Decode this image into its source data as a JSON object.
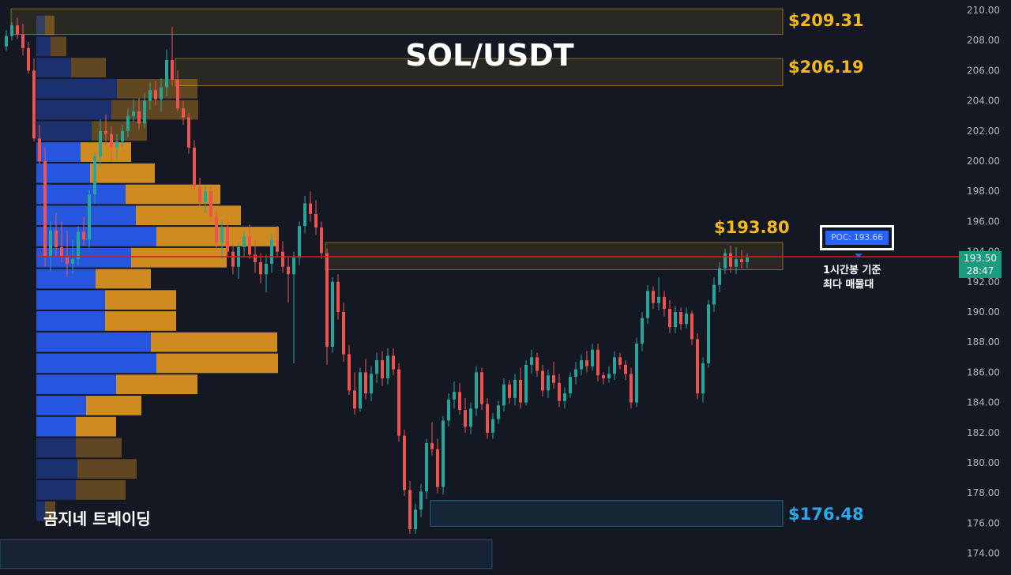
{
  "title": "SOL/USDT",
  "watermark": "곰지네 트레이딩",
  "colors": {
    "background": "#141823",
    "bull": "#26a69a",
    "bear": "#ef5350",
    "poc_line": "#d81b1b",
    "vp_buy": "#2962ff",
    "vp_sell": "#f0a020",
    "zone_yellow": "#f5b71b",
    "zone_blue": "#29a9e8"
  },
  "zone_labels": {
    "z1": "$209.31",
    "z2": "$206.19",
    "z3": "$193.80",
    "z4": "$176.48"
  },
  "poc": {
    "label": "POC: 193.66",
    "note_line1": "1시간봉 기준",
    "note_line2": "최다 매물대"
  },
  "price_tag": {
    "price": "193.50",
    "countdown": "28:47"
  },
  "chart_data": {
    "type": "candlestick",
    "title": "SOL/USDT",
    "ylim": [
      173.5,
      210.5
    ],
    "y_ticks": [
      "210.00",
      "208.00",
      "206.00",
      "204.00",
      "202.00",
      "200.00",
      "198.00",
      "196.00",
      "194.00",
      "192.00",
      "190.00",
      "188.00",
      "186.00",
      "184.00",
      "182.00",
      "180.00",
      "178.00",
      "176.00",
      "174.00"
    ],
    "current_price": 193.5,
    "poc_price": 193.66,
    "zones": [
      {
        "label": "$209.31",
        "low": 208.4,
        "high": 210.1,
        "color": "yellow"
      },
      {
        "label": "$206.19",
        "low": 205.0,
        "high": 206.8,
        "color": "yellow"
      },
      {
        "label": "$193.80",
        "low": 192.8,
        "high": 194.6,
        "color": "yellow"
      },
      {
        "label": "$176.48",
        "low": 175.8,
        "high": 177.5,
        "color": "blue"
      }
    ],
    "volume_profile": [
      {
        "price": 209,
        "buy": 11,
        "sell": 12
      },
      {
        "price": 207.6,
        "buy": 18,
        "sell": 20
      },
      {
        "price": 206.2,
        "buy": 44,
        "sell": 44
      },
      {
        "price": 204.8,
        "buy": 102,
        "sell": 102
      },
      {
        "price": 203.4,
        "buy": 95,
        "sell": 110
      },
      {
        "price": 202,
        "buy": 70,
        "sell": 70
      },
      {
        "price": 200.6,
        "buy": 56,
        "sell": 64
      },
      {
        "price": 199.2,
        "buy": 68,
        "sell": 82
      },
      {
        "price": 197.8,
        "buy": 113,
        "sell": 120
      },
      {
        "price": 196.4,
        "buy": 126,
        "sell": 133
      },
      {
        "price": 195,
        "buy": 152,
        "sell": 155
      },
      {
        "price": 193.6,
        "buy": 120,
        "sell": 121
      },
      {
        "price": 192.2,
        "buy": 75,
        "sell": 70
      },
      {
        "price": 190.8,
        "buy": 87,
        "sell": 90
      },
      {
        "price": 189.4,
        "buy": 87,
        "sell": 90
      },
      {
        "price": 188,
        "buy": 145,
        "sell": 160
      },
      {
        "price": 186.6,
        "buy": 152,
        "sell": 154
      },
      {
        "price": 185.2,
        "buy": 101,
        "sell": 103
      },
      {
        "price": 183.8,
        "buy": 63,
        "sell": 70
      },
      {
        "price": 182.4,
        "buy": 50,
        "sell": 51
      },
      {
        "price": 181,
        "buy": 50,
        "sell": 58
      },
      {
        "price": 179.6,
        "buy": 52,
        "sell": 75
      },
      {
        "price": 178.2,
        "buy": 50,
        "sell": 63
      },
      {
        "price": 176.8,
        "buy": 11,
        "sell": 13
      }
    ],
    "ohlc": [
      [
        207.6,
        208.7,
        207.3,
        208.3
      ],
      [
        208.3,
        209.2,
        208.0,
        209.0
      ],
      [
        209.0,
        209.5,
        208.1,
        208.4
      ],
      [
        208.4,
        209.1,
        207.0,
        207.5
      ],
      [
        207.5,
        207.9,
        205.8,
        206.0
      ],
      [
        206.0,
        206.8,
        201.3,
        201.5
      ],
      [
        201.5,
        202.4,
        199.8,
        200.0
      ],
      [
        200.0,
        200.9,
        193.0,
        193.7
      ],
      [
        193.7,
        196.0,
        192.7,
        195.4
      ],
      [
        195.4,
        196.6,
        193.6,
        194.3
      ],
      [
        194.3,
        196.0,
        193.3,
        193.7
      ],
      [
        193.7,
        195.4,
        192.3,
        193.2
      ],
      [
        193.2,
        194.8,
        192.5,
        193.5
      ],
      [
        193.5,
        195.7,
        193.1,
        195.3
      ],
      [
        195.3,
        196.3,
        194.4,
        194.8
      ],
      [
        194.8,
        198.1,
        194.2,
        197.8
      ],
      [
        197.8,
        200.6,
        197.2,
        200.3
      ],
      [
        200.3,
        202.8,
        199.6,
        202.0
      ],
      [
        202.0,
        203.1,
        201.0,
        201.8
      ],
      [
        201.8,
        202.3,
        200.0,
        200.9
      ],
      [
        200.9,
        201.8,
        200.1,
        201.3
      ],
      [
        201.3,
        202.4,
        200.9,
        202.0
      ],
      [
        202.0,
        203.5,
        201.6,
        203.0
      ],
      [
        203.0,
        204.1,
        202.6,
        203.3
      ],
      [
        203.3,
        204.2,
        202.1,
        202.5
      ],
      [
        202.5,
        204.5,
        202.2,
        204.0
      ],
      [
        204.0,
        205.2,
        203.4,
        204.7
      ],
      [
        204.7,
        205.3,
        203.7,
        204.1
      ],
      [
        204.1,
        205.5,
        203.3,
        204.9
      ],
      [
        204.9,
        207.4,
        204.3,
        206.7
      ],
      [
        206.7,
        208.9,
        205.0,
        205.4
      ],
      [
        205.4,
        206.0,
        203.3,
        203.5
      ],
      [
        203.5,
        204.0,
        202.4,
        202.9
      ],
      [
        202.9,
        203.2,
        200.5,
        200.9
      ],
      [
        200.9,
        201.4,
        198.1,
        198.3
      ],
      [
        198.3,
        198.9,
        197.0,
        197.3
      ],
      [
        197.3,
        198.4,
        196.6,
        198.0
      ],
      [
        198.0,
        198.3,
        196.0,
        196.3
      ],
      [
        196.3,
        196.8,
        194.1,
        194.6
      ],
      [
        194.6,
        196.1,
        193.5,
        195.6
      ],
      [
        195.6,
        196.2,
        193.7,
        194.0
      ],
      [
        194.0,
        194.5,
        192.5,
        193.0
      ],
      [
        193.0,
        194.6,
        192.2,
        194.3
      ],
      [
        194.3,
        195.4,
        193.6,
        195.0
      ],
      [
        195.0,
        195.8,
        193.5,
        193.8
      ],
      [
        193.8,
        194.8,
        192.6,
        193.3
      ],
      [
        193.3,
        193.9,
        191.9,
        192.5
      ],
      [
        192.5,
        193.8,
        191.3,
        193.2
      ],
      [
        193.2,
        195.2,
        192.6,
        194.8
      ],
      [
        194.8,
        195.7,
        193.6,
        194.0
      ],
      [
        194.0,
        194.7,
        192.6,
        193.0
      ],
      [
        193.0,
        193.7,
        190.6,
        192.5
      ],
      [
        192.5,
        194.0,
        186.6,
        193.6
      ],
      [
        193.6,
        196.0,
        193.1,
        195.7
      ],
      [
        195.7,
        197.7,
        195.2,
        197.2
      ],
      [
        197.2,
        198.0,
        196.0,
        196.5
      ],
      [
        196.5,
        197.4,
        195.1,
        195.6
      ],
      [
        195.6,
        196.0,
        193.5,
        193.9
      ],
      [
        193.9,
        194.2,
        186.5,
        187.7
      ],
      [
        187.7,
        192.3,
        187.3,
        192.0
      ],
      [
        192.0,
        192.5,
        189.5,
        190.0
      ],
      [
        190.0,
        190.6,
        186.7,
        187.2
      ],
      [
        187.2,
        187.8,
        184.5,
        184.8
      ],
      [
        184.8,
        186.0,
        183.2,
        183.6
      ],
      [
        183.6,
        186.3,
        183.4,
        186.0
      ],
      [
        186.0,
        186.9,
        184.2,
        184.6
      ],
      [
        184.6,
        186.4,
        184.1,
        185.9
      ],
      [
        185.9,
        187.3,
        185.3,
        186.8
      ],
      [
        186.8,
        187.4,
        185.1,
        185.6
      ],
      [
        185.6,
        187.6,
        185.2,
        187.1
      ],
      [
        187.1,
        187.6,
        185.8,
        186.2
      ],
      [
        186.2,
        186.6,
        181.4,
        181.8
      ],
      [
        181.8,
        182.2,
        177.8,
        178.2
      ],
      [
        178.2,
        178.8,
        175.3,
        175.6
      ],
      [
        175.6,
        177.3,
        175.3,
        176.9
      ],
      [
        176.9,
        178.6,
        176.4,
        178.1
      ],
      [
        178.1,
        181.6,
        177.6,
        181.3
      ],
      [
        181.3,
        182.7,
        180.5,
        180.9
      ],
      [
        180.9,
        181.6,
        178.0,
        178.4
      ],
      [
        178.4,
        183.1,
        177.9,
        182.8
      ],
      [
        182.8,
        184.6,
        182.4,
        184.2
      ],
      [
        184.2,
        185.4,
        183.6,
        184.7
      ],
      [
        184.7,
        185.3,
        183.2,
        183.5
      ],
      [
        183.5,
        184.3,
        182.0,
        182.4
      ],
      [
        182.4,
        184.0,
        181.9,
        183.6
      ],
      [
        183.6,
        186.4,
        183.1,
        186.0
      ],
      [
        186.0,
        186.3,
        183.5,
        183.9
      ],
      [
        183.9,
        184.3,
        181.6,
        182.0
      ],
      [
        182.0,
        183.3,
        181.6,
        182.9
      ],
      [
        182.9,
        184.1,
        182.6,
        183.8
      ],
      [
        183.8,
        185.6,
        183.4,
        185.2
      ],
      [
        185.2,
        185.5,
        183.9,
        184.3
      ],
      [
        184.3,
        185.9,
        183.8,
        185.5
      ],
      [
        185.5,
        186.3,
        183.6,
        184.0
      ],
      [
        184.0,
        186.8,
        183.8,
        186.5
      ],
      [
        186.5,
        187.5,
        185.9,
        187.0
      ],
      [
        187.0,
        187.3,
        185.7,
        186.1
      ],
      [
        186.1,
        186.5,
        184.4,
        184.8
      ],
      [
        184.8,
        186.2,
        184.3,
        185.8
      ],
      [
        185.8,
        186.7,
        184.9,
        185.3
      ],
      [
        185.3,
        185.9,
        183.7,
        184.1
      ],
      [
        184.1,
        185.0,
        183.6,
        184.6
      ],
      [
        184.6,
        186.0,
        184.3,
        185.7
      ],
      [
        185.7,
        186.7,
        185.2,
        186.2
      ],
      [
        186.2,
        187.2,
        185.8,
        186.8
      ],
      [
        186.8,
        187.4,
        186.0,
        186.4
      ],
      [
        186.4,
        187.9,
        186.1,
        187.5
      ],
      [
        187.5,
        187.9,
        185.4,
        185.8
      ],
      [
        185.8,
        186.0,
        185.2,
        185.6
      ],
      [
        185.6,
        186.4,
        185.3,
        185.9
      ],
      [
        185.9,
        187.4,
        185.5,
        187.0
      ],
      [
        187.0,
        187.3,
        186.2,
        186.5
      ],
      [
        186.5,
        186.8,
        185.5,
        185.9
      ],
      [
        185.9,
        186.3,
        183.6,
        184.0
      ],
      [
        184.0,
        188.3,
        183.7,
        187.9
      ],
      [
        187.9,
        190.0,
        187.4,
        189.6
      ],
      [
        189.6,
        191.8,
        189.2,
        191.4
      ],
      [
        191.4,
        191.7,
        190.2,
        190.6
      ],
      [
        190.6,
        192.3,
        190.1,
        191.0
      ],
      [
        191.0,
        191.4,
        189.7,
        190.2
      ],
      [
        190.2,
        190.8,
        188.6,
        189.0
      ],
      [
        189.0,
        190.4,
        188.6,
        190.0
      ],
      [
        190.0,
        190.3,
        188.8,
        189.2
      ],
      [
        189.2,
        190.3,
        188.9,
        189.9
      ],
      [
        189.9,
        190.1,
        187.8,
        188.2
      ],
      [
        188.2,
        188.6,
        184.2,
        184.6
      ],
      [
        184.6,
        187.0,
        184.0,
        186.6
      ],
      [
        186.6,
        190.8,
        186.3,
        190.5
      ],
      [
        190.5,
        192.3,
        190.0,
        191.8
      ],
      [
        191.8,
        193.3,
        191.3,
        192.9
      ],
      [
        192.9,
        194.2,
        192.5,
        193.9
      ],
      [
        193.9,
        194.4,
        192.6,
        193.0
      ],
      [
        193.0,
        194.3,
        192.5,
        193.5
      ],
      [
        193.5,
        194.1,
        192.9,
        193.3
      ],
      [
        193.3,
        193.9,
        192.9,
        193.6
      ]
    ]
  }
}
